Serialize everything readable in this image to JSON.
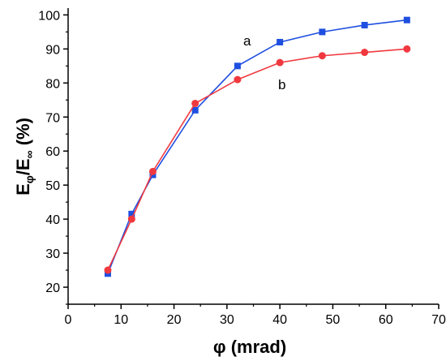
{
  "chart_data": {
    "type": "line",
    "title": "",
    "xlabel": "φ (mrad)",
    "ylabel": {
      "e1": "E",
      "sub1": "φ",
      "slash": "/",
      "e2": "E",
      "sub2": "∞",
      "unit": " (%)"
    },
    "xlim": [
      0,
      70
    ],
    "ylim": [
      15,
      102
    ],
    "xticks": [
      0,
      10,
      20,
      30,
      40,
      50,
      60,
      70
    ],
    "yticks": [
      20,
      30,
      40,
      50,
      60,
      70,
      80,
      90,
      100
    ],
    "grid": false,
    "series": [
      {
        "name": "a",
        "color": "#1f4fe0",
        "marker": "square",
        "x": [
          7.5,
          12,
          16,
          24,
          32,
          40,
          48,
          56,
          64
        ],
        "y": [
          24,
          41.5,
          53,
          72,
          85,
          92,
          95,
          97,
          98.5
        ]
      },
      {
        "name": "b",
        "color": "#f0393f",
        "marker": "circle",
        "x": [
          7.5,
          12,
          16,
          24,
          32,
          40,
          48,
          56,
          64
        ],
        "y": [
          25,
          40,
          54,
          74,
          81,
          86,
          88,
          89,
          90
        ]
      }
    ]
  }
}
